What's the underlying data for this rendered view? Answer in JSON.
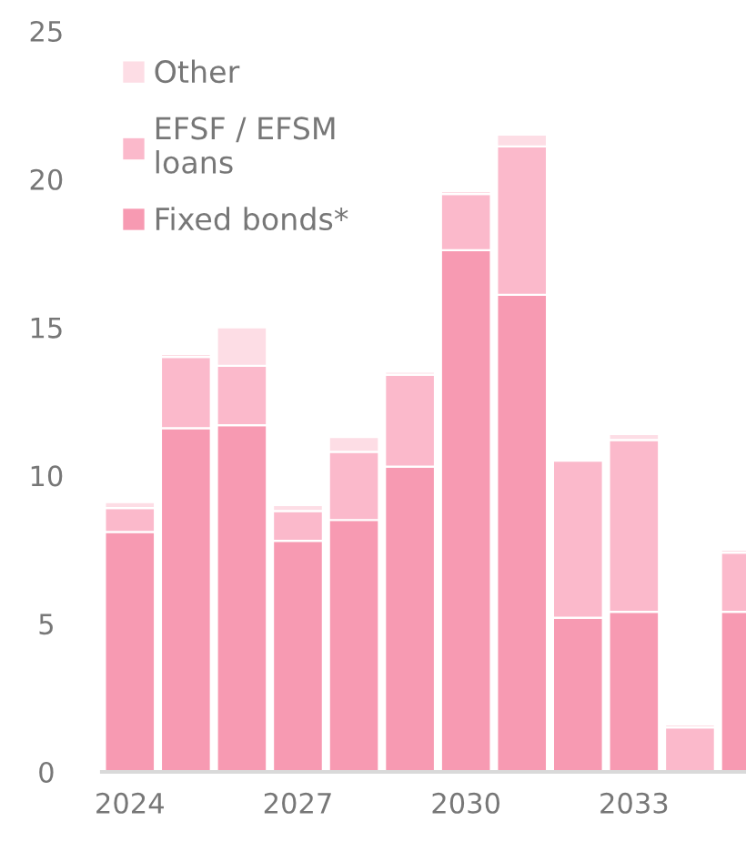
{
  "chart_data": {
    "type": "bar",
    "stacked": true,
    "categories": [
      "2024",
      null,
      null,
      "2027",
      null,
      null,
      "2030",
      null,
      null,
      "2033",
      null,
      null
    ],
    "series": [
      {
        "name": "Fixed bonds*",
        "color": "#f79ab2",
        "values": [
          8.1,
          11.6,
          11.7,
          7.8,
          8.5,
          10.3,
          17.6,
          16.1,
          5.2,
          5.4,
          0,
          5.4
        ]
      },
      {
        "name": "EFSF / EFSM\nloans",
        "color": "#fbb9cb",
        "values": [
          0.8,
          2.4,
          2.0,
          1.0,
          2.3,
          3.1,
          1.9,
          5.0,
          5.3,
          5.8,
          1.5,
          2.0
        ]
      },
      {
        "name": "Other",
        "color": "#fddde5",
        "values": [
          0.2,
          0.1,
          1.3,
          0.2,
          0.5,
          0.1,
          0.1,
          0.4,
          0,
          0.2,
          0.1,
          0.1
        ]
      }
    ],
    "ylim": [
      0,
      25
    ],
    "yticks": [
      0,
      5,
      10,
      15,
      20,
      25
    ],
    "grid": false,
    "legend": "top left"
  }
}
